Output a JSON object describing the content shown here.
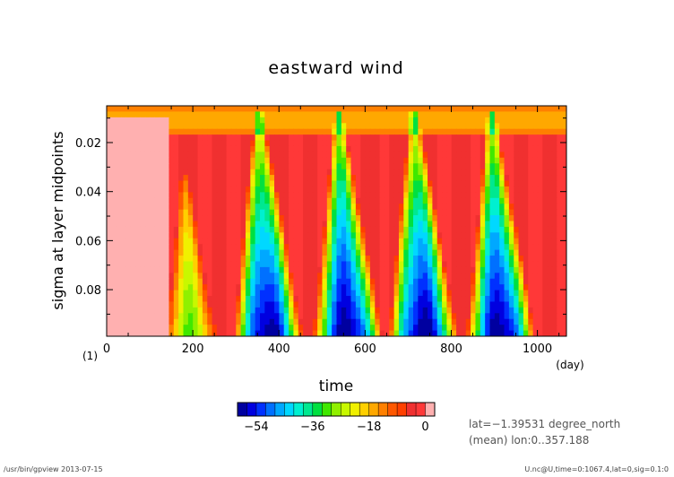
{
  "chart_data": {
    "type": "heatmap",
    "title": "eastward wind",
    "xlabel": "time",
    "x_unit": "(day)",
    "ylabel": "sigma at layer midpoints",
    "y_unit": "(1)",
    "xlim": [
      0,
      1067.4
    ],
    "ylim_inverted": [
      0.005,
      0.099
    ],
    "x_ticks": [
      0,
      200,
      400,
      600,
      800,
      1000
    ],
    "x_tick_labels": [
      "0",
      "200",
      "400",
      "600",
      "800",
      "1000"
    ],
    "y_ticks": [
      0.02,
      0.04,
      0.06,
      0.08
    ],
    "y_tick_labels": [
      "0.02",
      "0.04",
      "0.06",
      "0.08"
    ],
    "colorbar": {
      "levels": [
        -60,
        -57,
        -54,
        -51,
        -48,
        -45,
        -42,
        -39,
        -36,
        -33,
        -30,
        -27,
        -24,
        -21,
        -18,
        -15,
        -12,
        -9,
        -6,
        -3,
        0,
        3
      ],
      "colors": [
        "#0000a0",
        "#0000e0",
        "#0030ff",
        "#0070ff",
        "#00a8ff",
        "#00d8ff",
        "#00f0d0",
        "#00e890",
        "#00e040",
        "#40e800",
        "#90f000",
        "#c8f800",
        "#f0f000",
        "#ffd000",
        "#ffa800",
        "#ff8000",
        "#ff5800",
        "#ff4000",
        "#f03030",
        "#ff3838",
        "#ffb0b0"
      ],
      "tick_values": [
        -54,
        -36,
        -18,
        0
      ],
      "tick_labels": [
        "−54",
        "−36",
        "−18",
        "0"
      ]
    },
    "annotations": [
      "lat=−1.39531 degree_north",
      "(mean) lon:0..357.188"
    ],
    "field_description": "Descending easterly (negative) wind bands originating near the top and reaching the bottom level around days 380, 560, 730 and 920; westerly (positive, red) elsewhere.",
    "easterly_events": [
      {
        "bottom_center_day": 195,
        "min_value": -27
      },
      {
        "bottom_center_day": 375,
        "min_value": -57
      },
      {
        "bottom_center_day": 560,
        "min_value": -57
      },
      {
        "bottom_center_day": 735,
        "min_value": -57
      },
      {
        "bottom_center_day": 915,
        "min_value": -57
      }
    ]
  },
  "footer": {
    "left": "/usr/bin/gpview  2013-07-15",
    "right": "U.nc@U,time=0:1067.4,lat=0,sig=0.1:0"
  }
}
